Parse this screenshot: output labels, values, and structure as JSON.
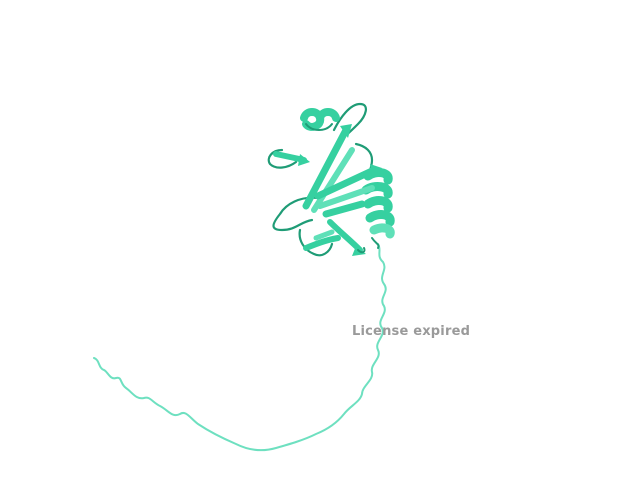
{
  "viewer": {
    "watermark_text": "License expired"
  },
  "colors": {
    "background": "#ffffff",
    "cartoon_main": "#36d0a0",
    "cartoon_light": "#5fe0b8",
    "cartoon_dark": "#1f9c76",
    "coil_tail": "#6ee0c0",
    "watermark": "#9a9a9a"
  },
  "icons": [
    "protein-cartoon-structure"
  ]
}
